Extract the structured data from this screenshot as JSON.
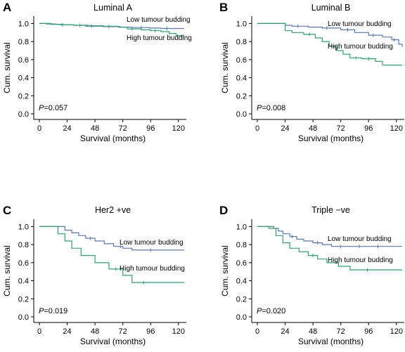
{
  "figure": {
    "colors": {
      "low": "#5878b8",
      "high": "#2aa56c",
      "axis": "#000000"
    }
  },
  "chart_data": [
    {
      "type": "line",
      "panel": "A",
      "title": "Luminal A",
      "xlabel": "Survival (months)",
      "ylabel": "Cum. survival",
      "xlim": [
        0,
        125
      ],
      "ylim": [
        0,
        1.05
      ],
      "xticks": [
        0,
        24,
        48,
        72,
        96,
        120
      ],
      "xtick_labels": [
        "0",
        "24",
        "48",
        "72",
        "96",
        "120"
      ],
      "yticks": [
        0.0,
        0.2,
        0.4,
        0.6,
        0.8,
        1.0
      ],
      "ytick_labels": [
        "0.0",
        "0.2",
        "0.4",
        "0.6",
        "0.8",
        "1.0"
      ],
      "p_prefix": "P",
      "p_value": "=0.057",
      "series": [
        {
          "name": "Low tumour budding",
          "color": "#5878b8",
          "x": [
            0,
            6,
            14,
            20,
            30,
            40,
            55,
            70,
            80,
            95,
            105,
            125
          ],
          "y": [
            1.0,
            0.995,
            0.99,
            0.985,
            0.98,
            0.97,
            0.965,
            0.96,
            0.955,
            0.95,
            0.945,
            0.945
          ],
          "censored": [
            [
              20,
              0.985
            ],
            [
              45,
              0.97
            ],
            [
              60,
              0.965
            ],
            [
              88,
              0.955
            ],
            [
              110,
              0.945
            ]
          ]
        },
        {
          "name": "High tumour budding",
          "color": "#2aa56c",
          "x": [
            0,
            10,
            18,
            30,
            42,
            55,
            68,
            76,
            88,
            96,
            105,
            112,
            118,
            125
          ],
          "y": [
            1.0,
            0.99,
            0.985,
            0.98,
            0.975,
            0.97,
            0.96,
            0.94,
            0.93,
            0.92,
            0.91,
            0.89,
            0.865,
            0.865
          ],
          "censored": [
            [
              35,
              0.98
            ],
            [
              80,
              0.94
            ],
            [
              100,
              0.92
            ]
          ]
        }
      ]
    },
    {
      "type": "line",
      "panel": "B",
      "title": "Luminal B",
      "xlabel": "Survival (months)",
      "ylabel": "Cum. survival",
      "xlim": [
        0,
        125
      ],
      "ylim": [
        0,
        1.05
      ],
      "xticks": [
        0,
        24,
        48,
        72,
        96,
        120
      ],
      "xtick_labels": [
        "0",
        "24",
        "48",
        "72",
        "96",
        "120"
      ],
      "yticks": [
        0.0,
        0.2,
        0.4,
        0.6,
        0.8,
        1.0
      ],
      "ytick_labels": [
        "0.0",
        "0.2",
        "0.4",
        "0.6",
        "0.8",
        "1.0"
      ],
      "p_prefix": "P",
      "p_value": "=0.008",
      "series": [
        {
          "name": "Low tumour budding",
          "color": "#5878b8",
          "x": [
            0,
            12,
            24,
            30,
            44,
            56,
            72,
            84,
            96,
            108,
            116,
            122,
            125
          ],
          "y": [
            1.0,
            1.0,
            0.98,
            0.97,
            0.96,
            0.95,
            0.93,
            0.9,
            0.87,
            0.85,
            0.82,
            0.77,
            0.74
          ],
          "censored": [
            [
              35,
              0.97
            ],
            [
              60,
              0.95
            ],
            [
              78,
              0.93
            ],
            [
              100,
              0.87
            ],
            [
              118,
              0.82
            ]
          ]
        },
        {
          "name": "High tumour budding",
          "color": "#2aa56c",
          "x": [
            0,
            20,
            24,
            30,
            40,
            50,
            56,
            62,
            68,
            74,
            80,
            90,
            102,
            108,
            125
          ],
          "y": [
            1.0,
            1.0,
            0.92,
            0.9,
            0.88,
            0.84,
            0.8,
            0.75,
            0.7,
            0.66,
            0.62,
            0.61,
            0.58,
            0.54,
            0.54
          ],
          "censored": [
            [
              45,
              0.88
            ],
            [
              85,
              0.62
            ],
            [
              96,
              0.61
            ]
          ]
        }
      ]
    },
    {
      "type": "line",
      "panel": "C",
      "title": "Her2 +ve",
      "xlabel": "Survival (months)",
      "ylabel": "Cum. survival",
      "xlim": [
        0,
        125
      ],
      "ylim": [
        0,
        1.05
      ],
      "xticks": [
        0,
        24,
        48,
        72,
        96,
        120
      ],
      "xtick_labels": [
        "0",
        "24",
        "48",
        "72",
        "96",
        "120"
      ],
      "yticks": [
        0.0,
        0.2,
        0.4,
        0.6,
        0.8,
        1.0
      ],
      "ytick_labels": [
        "0.0",
        "0.2",
        "0.4",
        "0.6",
        "0.8",
        "1.0"
      ],
      "p_prefix": "P",
      "p_value": "=0.019",
      "series": [
        {
          "name": "Low tumour budding",
          "color": "#5878b8",
          "x": [
            0,
            18,
            22,
            28,
            34,
            40,
            48,
            56,
            64,
            72,
            80,
            125
          ],
          "y": [
            1.0,
            1.0,
            0.96,
            0.93,
            0.9,
            0.87,
            0.84,
            0.81,
            0.78,
            0.76,
            0.74,
            0.74
          ],
          "censored": [
            [
              44,
              0.87
            ],
            [
              70,
              0.78
            ],
            [
              96,
              0.74
            ]
          ]
        },
        {
          "name": "High tumour budding",
          "color": "#2aa56c",
          "x": [
            0,
            10,
            16,
            22,
            28,
            36,
            48,
            60,
            72,
            80,
            125
          ],
          "y": [
            1.0,
            1.0,
            0.92,
            0.84,
            0.76,
            0.68,
            0.6,
            0.53,
            0.46,
            0.38,
            0.38
          ],
          "censored": [
            [
              66,
              0.53
            ],
            [
              90,
              0.38
            ]
          ]
        }
      ]
    },
    {
      "type": "line",
      "panel": "D",
      "title": "Triple −ve",
      "xlabel": "Survival (months)",
      "ylabel": "Cum. survival",
      "xlim": [
        0,
        125
      ],
      "ylim": [
        0,
        1.05
      ],
      "xticks": [
        0,
        24,
        48,
        72,
        96,
        120
      ],
      "xtick_labels": [
        "0",
        "24",
        "48",
        "72",
        "96",
        "120"
      ],
      "yticks": [
        0.0,
        0.2,
        0.4,
        0.6,
        0.8,
        1.0
      ],
      "ytick_labels": [
        "0.0",
        "0.2",
        "0.4",
        "0.6",
        "0.8",
        "1.0"
      ],
      "p_prefix": "P",
      "p_value": "=0.020",
      "series": [
        {
          "name": "Low tumour budding",
          "color": "#5878b8",
          "x": [
            0,
            8,
            14,
            18,
            22,
            28,
            34,
            40,
            48,
            56,
            64,
            125
          ],
          "y": [
            1.0,
            1.0,
            0.98,
            0.95,
            0.92,
            0.89,
            0.86,
            0.84,
            0.82,
            0.8,
            0.78,
            0.78
          ],
          "censored": [
            [
              30,
              0.89
            ],
            [
              52,
              0.82
            ],
            [
              72,
              0.78
            ],
            [
              88,
              0.78
            ],
            [
              104,
              0.78
            ]
          ]
        },
        {
          "name": "High tumour budding",
          "color": "#2aa56c",
          "x": [
            0,
            10,
            16,
            22,
            28,
            36,
            44,
            52,
            60,
            70,
            80,
            125
          ],
          "y": [
            1.0,
            0.98,
            0.9,
            0.82,
            0.76,
            0.72,
            0.68,
            0.64,
            0.6,
            0.56,
            0.52,
            0.52
          ],
          "censored": [
            [
              48,
              0.68
            ],
            [
              95,
              0.52
            ]
          ]
        }
      ]
    }
  ]
}
